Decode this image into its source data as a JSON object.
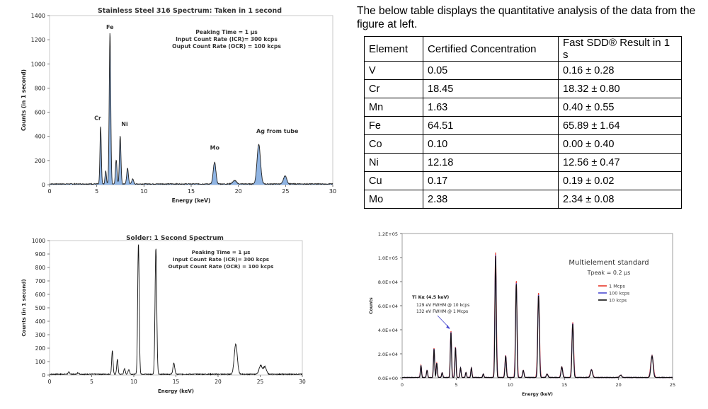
{
  "intro_text": "The below table displays the quantitative analysis of the data from the figure at left.",
  "table": {
    "headers": [
      "Element",
      "Certified Concentration",
      "Fast SDD® Result in 1 s"
    ],
    "rows": [
      [
        "V",
        "0.05",
        "0.16 ± 0.28"
      ],
      [
        "Cr",
        "18.45",
        "18.32 ± 0.80"
      ],
      [
        "Mn",
        "1.63",
        "0.40 ± 0.55"
      ],
      [
        "Fe",
        "64.51",
        "65.89 ± 1.64"
      ],
      [
        "Co",
        "0.10",
        "0.00 ± 0.40"
      ],
      [
        "Ni",
        "12.18",
        "12.56 ± 0.47"
      ],
      [
        "Cu",
        "0.17",
        "0.19 ± 0.02"
      ],
      [
        "Mo",
        "2.38",
        "2.34 ± 0.08"
      ]
    ]
  },
  "chart_data": [
    {
      "id": "steel",
      "type": "line",
      "title": "Stainless Steel 316 Spectrum: Taken in 1 second",
      "xlabel": "Energy (keV)",
      "ylabel": "Counts (in 1 second)",
      "xlim": [
        0,
        30
      ],
      "ylim": [
        0,
        1400
      ],
      "xticks": [
        0,
        5,
        10,
        15,
        20,
        25,
        30
      ],
      "yticks": [
        0,
        200,
        400,
        600,
        800,
        1000,
        1200,
        1400
      ],
      "fill_color": "#8fb4e3",
      "line_color": "#222222",
      "annotation_lines": [
        "Peaking Time = 1 µs",
        "Input Count Rate (ICR)= 300 kcps",
        "Ouput Count Rate (OCR) = 100 kcps"
      ],
      "peak_labels": [
        {
          "text": "Fe",
          "x": 6.4,
          "y": 1255
        },
        {
          "text": "Cr",
          "x": 5.4,
          "y": 500
        },
        {
          "text": "Ni",
          "x": 7.5,
          "y": 450
        },
        {
          "text": "Mo",
          "x": 17.5,
          "y": 255
        },
        {
          "text": "Ag from tube",
          "x": 22.2,
          "y": 370
        }
      ],
      "baseline": 6,
      "peaks": [
        {
          "x": 5.41,
          "y": 480,
          "w": 0.07
        },
        {
          "x": 5.95,
          "y": 110,
          "w": 0.07
        },
        {
          "x": 6.4,
          "y": 1255,
          "w": 0.08
        },
        {
          "x": 7.06,
          "y": 200,
          "w": 0.08
        },
        {
          "x": 7.48,
          "y": 400,
          "w": 0.08
        },
        {
          "x": 8.26,
          "y": 130,
          "w": 0.09
        },
        {
          "x": 8.8,
          "y": 40,
          "w": 0.1
        },
        {
          "x": 17.48,
          "y": 180,
          "w": 0.14
        },
        {
          "x": 19.6,
          "y": 28,
          "w": 0.2
        },
        {
          "x": 22.16,
          "y": 330,
          "w": 0.18
        },
        {
          "x": 24.95,
          "y": 68,
          "w": 0.17
        }
      ]
    },
    {
      "id": "solder",
      "type": "line",
      "title": "Solder: 1 Second Spectrum",
      "xlabel": "Energy (keV)",
      "ylabel": "Counts (in 1 second)",
      "xlim": [
        0,
        30
      ],
      "ylim": [
        0,
        1000
      ],
      "xticks": [
        0,
        5,
        10,
        15,
        20,
        25,
        30
      ],
      "yticks": [
        0,
        100,
        200,
        300,
        400,
        500,
        600,
        700,
        800,
        900,
        1000
      ],
      "line_color": "#111111",
      "annotation_lines": [
        "Peaking Time = 1 µs",
        "Input Count Rate (ICR)= 300 kcps",
        "Output Count Rate (OCR) = 100 kcps"
      ],
      "baseline": 6,
      "peaks": [
        {
          "x": 2.3,
          "y": 15,
          "w": 0.1
        },
        {
          "x": 3.4,
          "y": 12,
          "w": 0.1
        },
        {
          "x": 7.45,
          "y": 175,
          "w": 0.08
        },
        {
          "x": 8.05,
          "y": 110,
          "w": 0.08
        },
        {
          "x": 8.9,
          "y": 40,
          "w": 0.09
        },
        {
          "x": 9.4,
          "y": 35,
          "w": 0.09
        },
        {
          "x": 10.55,
          "y": 970,
          "w": 0.09
        },
        {
          "x": 12.62,
          "y": 935,
          "w": 0.1
        },
        {
          "x": 14.75,
          "y": 80,
          "w": 0.11
        },
        {
          "x": 22.1,
          "y": 225,
          "w": 0.18
        },
        {
          "x": 25.05,
          "y": 65,
          "w": 0.18
        },
        {
          "x": 25.55,
          "y": 55,
          "w": 0.18
        }
      ]
    },
    {
      "id": "multi",
      "type": "line",
      "title": "Multielement standard",
      "subtitle": "Tpeak = 0.2 µs",
      "xlabel": "Energy (keV)",
      "ylabel": "Counts",
      "xlim": [
        0,
        25
      ],
      "ylim": [
        0,
        120000
      ],
      "xticks": [
        0,
        5,
        10,
        15,
        20,
        25
      ],
      "ytick_values": [
        0,
        20000,
        40000,
        60000,
        80000,
        100000,
        120000
      ],
      "ytick_labels": [
        "0.0E+00",
        "2.0E+04",
        "4.0E+04",
        "6.0E+04",
        "8.0E+04",
        "1.0E+05",
        "1.2E+05"
      ],
      "annotation_lines": [
        "Ti Kα (4.5 keV)",
        "129 eV FWHM @ 10 kcps",
        "132 eV FWHM @ 1 Mcps"
      ],
      "legend_position": "right",
      "series": [
        {
          "name": "1 Mcps",
          "color": "#e8392b",
          "scale": 1.02,
          "width": 1.22
        },
        {
          "name": "100 kcps",
          "color": "#4b4bd1",
          "scale": 1.0,
          "width": 1.08
        },
        {
          "name": "10 kcps",
          "color": "#111111",
          "scale": 0.99,
          "width": 1.0
        }
      ],
      "baseline": 300,
      "peaks": [
        {
          "x": 1.74,
          "y": 10000,
          "w": 0.05
        },
        {
          "x": 2.3,
          "y": 6000,
          "w": 0.05
        },
        {
          "x": 2.95,
          "y": 24000,
          "w": 0.05
        },
        {
          "x": 3.2,
          "y": 12000,
          "w": 0.05
        },
        {
          "x": 3.7,
          "y": 4000,
          "w": 0.05
        },
        {
          "x": 4.51,
          "y": 38000,
          "w": 0.05
        },
        {
          "x": 4.93,
          "y": 25000,
          "w": 0.05
        },
        {
          "x": 5.4,
          "y": 8000,
          "w": 0.05
        },
        {
          "x": 5.9,
          "y": 4000,
          "w": 0.05
        },
        {
          "x": 6.4,
          "y": 8000,
          "w": 0.05
        },
        {
          "x": 7.5,
          "y": 3000,
          "w": 0.05
        },
        {
          "x": 8.64,
          "y": 102000,
          "w": 0.06
        },
        {
          "x": 9.57,
          "y": 18000,
          "w": 0.06
        },
        {
          "x": 10.55,
          "y": 79000,
          "w": 0.06
        },
        {
          "x": 11.2,
          "y": 6000,
          "w": 0.06
        },
        {
          "x": 12.61,
          "y": 69000,
          "w": 0.07
        },
        {
          "x": 13.4,
          "y": 3000,
          "w": 0.07
        },
        {
          "x": 14.76,
          "y": 9000,
          "w": 0.07
        },
        {
          "x": 15.77,
          "y": 45000,
          "w": 0.07
        },
        {
          "x": 17.5,
          "y": 6500,
          "w": 0.09
        },
        {
          "x": 20.2,
          "y": 2000,
          "w": 0.09
        },
        {
          "x": 23.1,
          "y": 18000,
          "w": 0.1
        }
      ]
    }
  ]
}
